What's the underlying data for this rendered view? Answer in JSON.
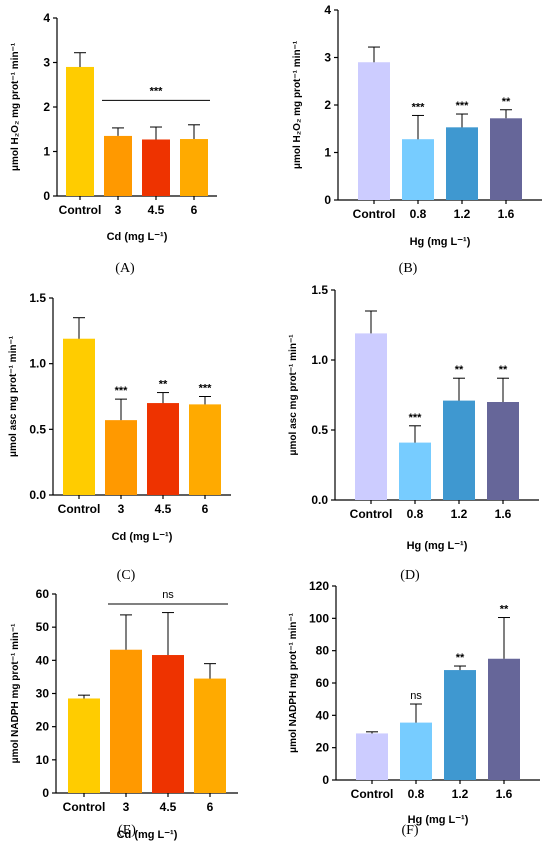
{
  "colors": {
    "cd": [
      "#FFCC00",
      "#FF9900",
      "#EE3300",
      "#FFAA00"
    ],
    "hg": [
      "#CCCCFF",
      "#77CCFF",
      "#3F98D0",
      "#666699"
    ]
  },
  "chart_data": [
    {
      "id": "A",
      "type": "bar",
      "panel_label": "(A)",
      "categories": [
        "Control",
        "3",
        "4.5",
        "6"
      ],
      "values": [
        2.9,
        1.35,
        1.27,
        1.28
      ],
      "errors": [
        0.32,
        0.18,
        0.28,
        0.32
      ],
      "significance": [
        "",
        "",
        "",
        ""
      ],
      "group_bracket": {
        "from": 1,
        "to": 3,
        "label": "***",
        "y": 2.15
      },
      "ylim": [
        0,
        4
      ],
      "yticks": [
        0,
        1,
        2,
        3,
        4
      ],
      "ytick_labels": [
        "0",
        "1",
        "2",
        "3",
        "4"
      ],
      "ylabel": "μmol H₂O₂ mg prot⁻¹ min⁻¹",
      "xlabel": "Cd (mg L⁻¹)",
      "palette": "cd"
    },
    {
      "id": "B",
      "type": "bar",
      "panel_label": "(B)",
      "categories": [
        "Control",
        "0.8",
        "1.2",
        "1.6"
      ],
      "values": [
        2.9,
        1.28,
        1.53,
        1.72
      ],
      "errors": [
        0.32,
        0.5,
        0.28,
        0.18
      ],
      "significance": [
        "",
        "***",
        "***",
        "**"
      ],
      "ylim": [
        0,
        4
      ],
      "yticks": [
        0,
        1,
        2,
        3,
        4
      ],
      "ytick_labels": [
        "0",
        "1",
        "2",
        "3",
        "4"
      ],
      "ylabel": "μmol H₂O₂ mg prot⁻¹ min⁻¹",
      "xlabel": "Hg (mg L⁻¹)",
      "palette": "hg"
    },
    {
      "id": "C",
      "type": "bar",
      "panel_label": "(C)",
      "categories": [
        "Control",
        "3",
        "4.5",
        "6"
      ],
      "values": [
        1.19,
        0.57,
        0.7,
        0.69
      ],
      "errors": [
        0.16,
        0.16,
        0.08,
        0.06
      ],
      "significance": [
        "",
        "***",
        "**",
        "***"
      ],
      "ylim": [
        0,
        1.5
      ],
      "yticks": [
        0,
        0.5,
        1.0,
        1.5
      ],
      "ytick_labels": [
        "0.0",
        "0.5",
        "1.0",
        "1.5"
      ],
      "ylabel": "μmol asc mg prot⁻¹ min⁻¹",
      "xlabel": "Cd (mg L⁻¹)",
      "palette": "cd"
    },
    {
      "id": "D",
      "type": "bar",
      "panel_label": "(D)",
      "categories": [
        "Control",
        "0.8",
        "1.2",
        "1.6"
      ],
      "values": [
        1.19,
        0.41,
        0.71,
        0.7
      ],
      "errors": [
        0.16,
        0.12,
        0.16,
        0.17
      ],
      "significance": [
        "",
        "***",
        "**",
        "**"
      ],
      "ylim": [
        0,
        1.5
      ],
      "yticks": [
        0,
        0.5,
        1.0,
        1.5
      ],
      "ytick_labels": [
        "0.0",
        "0.5",
        "1.0",
        "1.5"
      ],
      "ylabel": "μmol asc mg prot⁻¹ min⁻¹",
      "xlabel": "Hg (mg L⁻¹)",
      "palette": "hg"
    },
    {
      "id": "E",
      "type": "bar",
      "panel_label": "(E)",
      "categories": [
        "Control",
        "3",
        "4.5",
        "6"
      ],
      "values": [
        28.5,
        43.2,
        41.6,
        34.5
      ],
      "errors": [
        1.0,
        10.5,
        12.8,
        4.5
      ],
      "significance": [
        "",
        "",
        "",
        ""
      ],
      "group_bracket": {
        "from": 1,
        "to": 3,
        "label": "ns",
        "y": 57
      },
      "ylim": [
        0,
        60
      ],
      "yticks": [
        0,
        10,
        20,
        30,
        40,
        50,
        60
      ],
      "ytick_labels": [
        "0",
        "10",
        "20",
        "30",
        "40",
        "50",
        "60"
      ],
      "ylabel": "μmol NADPH mg prot⁻¹ min⁻¹",
      "xlabel": "Cd (mg L⁻¹)",
      "palette": "cd"
    },
    {
      "id": "F",
      "type": "bar",
      "panel_label": "(F)",
      "categories": [
        "Control",
        "0.8",
        "1.2",
        "1.6"
      ],
      "values": [
        28.8,
        35.5,
        68.0,
        75.0
      ],
      "errors": [
        1.0,
        11.5,
        2.5,
        25.5
      ],
      "significance": [
        "",
        "ns",
        "**",
        "**"
      ],
      "ylim": [
        0,
        120
      ],
      "yticks": [
        0,
        20,
        40,
        60,
        80,
        100,
        120
      ],
      "ytick_labels": [
        "0",
        "20",
        "40",
        "60",
        "80",
        "100",
        "120"
      ],
      "ylabel": "μmol NADPH mg prot⁻¹ min⁻¹",
      "xlabel": "Hg (mg L⁻¹)",
      "palette": "hg"
    }
  ]
}
